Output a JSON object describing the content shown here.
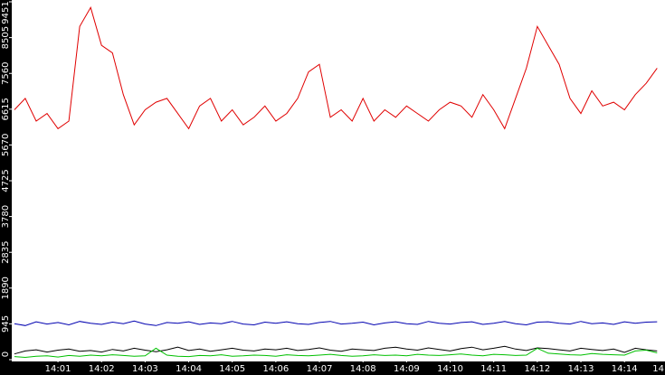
{
  "chart_data": {
    "type": "line",
    "x": [
      0,
      0.25,
      0.5,
      0.75,
      1,
      1.25,
      1.5,
      1.75,
      2,
      2.25,
      2.5,
      2.75,
      3,
      3.25,
      3.5,
      3.75,
      4,
      4.25,
      4.5,
      4.75,
      5,
      5.25,
      5.5,
      5.75,
      6,
      6.25,
      6.5,
      6.75,
      7,
      7.25,
      7.5,
      7.75,
      8,
      8.25,
      8.5,
      8.75,
      9,
      9.25,
      9.5,
      9.75,
      10,
      10.25,
      10.5,
      10.75,
      11,
      11.25,
      11.5,
      11.75,
      12,
      12.25,
      12.5,
      12.75,
      13,
      13.25,
      13.5,
      13.75,
      14,
      14.25,
      14.5,
      14.75
    ],
    "xlim": [
      -0.06,
      14.93
    ],
    "xticks": [
      {
        "value": 1,
        "label": "14:01"
      },
      {
        "value": 2,
        "label": "14:02"
      },
      {
        "value": 3,
        "label": "14:03"
      },
      {
        "value": 4,
        "label": "14:04"
      },
      {
        "value": 5,
        "label": "14:05"
      },
      {
        "value": 6,
        "label": "14:06"
      },
      {
        "value": 7,
        "label": "14:07"
      },
      {
        "value": 8,
        "label": "14:08"
      },
      {
        "value": 9,
        "label": "14:09"
      },
      {
        "value": 10,
        "label": "14:10"
      },
      {
        "value": 11,
        "label": "14:11"
      },
      {
        "value": 12,
        "label": "14:12"
      },
      {
        "value": 13,
        "label": "14:13"
      },
      {
        "value": 14,
        "label": "14:14"
      },
      {
        "value": 15,
        "label": "14"
      }
    ],
    "ylim": [
      0,
      9451
    ],
    "yticks": [
      0,
      945,
      1890,
      2835,
      3780,
      4725,
      5670,
      6615,
      7560,
      8505,
      9451
    ],
    "series": [
      {
        "color": "#e00000",
        "values": [
          6600,
          6900,
          6300,
          6500,
          6100,
          6300,
          8800,
          9300,
          8300,
          8100,
          7000,
          6200,
          6600,
          6800,
          6900,
          6500,
          6100,
          6700,
          6900,
          6300,
          6600,
          6200,
          6400,
          6700,
          6300,
          6500,
          6900,
          7600,
          7800,
          6400,
          6600,
          6300,
          6900,
          6300,
          6600,
          6400,
          6700,
          6500,
          6300,
          6600,
          6800,
          6700,
          6400,
          7000,
          6600,
          6100,
          6900,
          7700,
          8800,
          8300,
          7800,
          6900,
          6500,
          7100,
          6700,
          6800,
          6600,
          7000,
          7300,
          7700
        ]
      },
      {
        "color": "#0000b0",
        "values": [
          950,
          900,
          1000,
          940,
          980,
          920,
          1010,
          960,
          930,
          990,
          950,
          1020,
          940,
          900,
          980,
          960,
          1000,
          930,
          970,
          950,
          1010,
          940,
          920,
          990,
          960,
          1000,
          950,
          930,
          980,
          1010,
          940,
          960,
          990,
          920,
          970,
          1000,
          950,
          930,
          1010,
          960,
          940,
          980,
          1000,
          930,
          960,
          1010,
          950,
          920,
          990,
          1000,
          960,
          940,
          1010,
          950,
          970,
          930,
          1000,
          960,
          990,
          1000
        ]
      },
      {
        "color": "#000000",
        "values": [
          150,
          230,
          260,
          200,
          250,
          280,
          220,
          240,
          200,
          270,
          230,
          300,
          250,
          210,
          260,
          330,
          240,
          280,
          220,
          260,
          300,
          250,
          230,
          280,
          260,
          300,
          240,
          270,
          310,
          250,
          220,
          280,
          260,
          240,
          300,
          330,
          280,
          250,
          310,
          270,
          230,
          290,
          330,
          260,
          300,
          350,
          280,
          240,
          310,
          290,
          260,
          230,
          300,
          270,
          240,
          280,
          190,
          300,
          260,
          230
        ]
      },
      {
        "color": "#00c000",
        "values": [
          80,
          60,
          90,
          100,
          70,
          110,
          90,
          120,
          100,
          130,
          110,
          90,
          100,
          300,
          120,
          90,
          80,
          110,
          100,
          130,
          90,
          100,
          120,
          110,
          90,
          130,
          110,
          100,
          120,
          140,
          110,
          90,
          100,
          130,
          110,
          120,
          100,
          140,
          120,
          110,
          130,
          150,
          120,
          100,
          140,
          130,
          110,
          120,
          300,
          170,
          150,
          130,
          120,
          160,
          140,
          130,
          120,
          230,
          250,
          180
        ]
      }
    ]
  }
}
